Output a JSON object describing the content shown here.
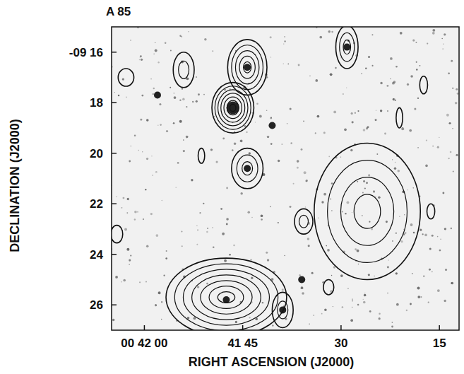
{
  "chart_data": {
    "type": "contour",
    "title": "A 85",
    "x_label": "RIGHT ASCENSION (J2000)",
    "y_label": "DECLINATION (J2000)",
    "xlim": [
      65,
      12
    ],
    "ylim": [
      27,
      15
    ],
    "xticks": [
      {
        "value": 60,
        "label": "00 42 00"
      },
      {
        "value": 45,
        "label": "41 45"
      },
      30,
      15
    ],
    "yticks": [
      {
        "value": 16,
        "label": "-09 16"
      },
      18,
      20,
      22,
      24,
      26
    ],
    "color": "#111111",
    "sources": [
      {
        "x": 46.5,
        "y": 18.2,
        "rx": 3.2,
        "ry": 1.0,
        "levels": 7
      },
      {
        "x": 44.3,
        "y": 16.6,
        "rx": 3.0,
        "ry": 1.1,
        "levels": 5
      },
      {
        "x": 44.3,
        "y": 20.6,
        "rx": 2.4,
        "ry": 0.8,
        "levels": 3
      },
      {
        "x": 29.1,
        "y": 15.8,
        "rx": 1.7,
        "ry": 0.85,
        "levels": 3
      },
      {
        "x": 26.0,
        "y": 22.3,
        "rx": 8.1,
        "ry": 2.7,
        "levels": 4
      },
      {
        "x": 47.5,
        "y": 25.7,
        "rx": 9.2,
        "ry": 1.55,
        "levels": 7
      },
      {
        "x": 38.9,
        "y": 26.2,
        "rx": 1.6,
        "ry": 0.7,
        "levels": 2
      },
      {
        "x": 54.0,
        "y": 16.7,
        "rx": 1.6,
        "ry": 0.7,
        "levels": 2
      },
      {
        "x": 35.7,
        "y": 22.7,
        "rx": 1.4,
        "ry": 0.5,
        "levels": 2
      },
      {
        "x": 62.8,
        "y": 17.0,
        "rx": 1.2,
        "ry": 0.35,
        "levels": 1
      },
      {
        "x": 17.4,
        "y": 17.3,
        "rx": 0.6,
        "ry": 0.35,
        "levels": 1
      },
      {
        "x": 21.1,
        "y": 18.6,
        "rx": 0.5,
        "ry": 0.4,
        "levels": 1
      },
      {
        "x": 16.3,
        "y": 22.3,
        "rx": 0.6,
        "ry": 0.3,
        "levels": 1
      },
      {
        "x": 31.9,
        "y": 25.3,
        "rx": 0.8,
        "ry": 0.3,
        "levels": 1
      },
      {
        "x": 64.2,
        "y": 23.2,
        "rx": 0.9,
        "ry": 0.35,
        "levels": 1
      },
      {
        "x": 51.3,
        "y": 20.1,
        "rx": 0.5,
        "ry": 0.3,
        "levels": 1
      }
    ],
    "galaxies": [
      {
        "x": 46.5,
        "y": 18.2
      },
      {
        "x": 44.3,
        "y": 16.6
      },
      {
        "x": 44.3,
        "y": 20.6
      },
      {
        "x": 29.1,
        "y": 15.8
      },
      {
        "x": 38.9,
        "y": 26.2
      },
      {
        "x": 47.5,
        "y": 25.8
      },
      {
        "x": 58.0,
        "y": 17.7
      },
      {
        "x": 40.5,
        "y": 18.9
      },
      {
        "x": 36.0,
        "y": 25.0
      }
    ]
  }
}
